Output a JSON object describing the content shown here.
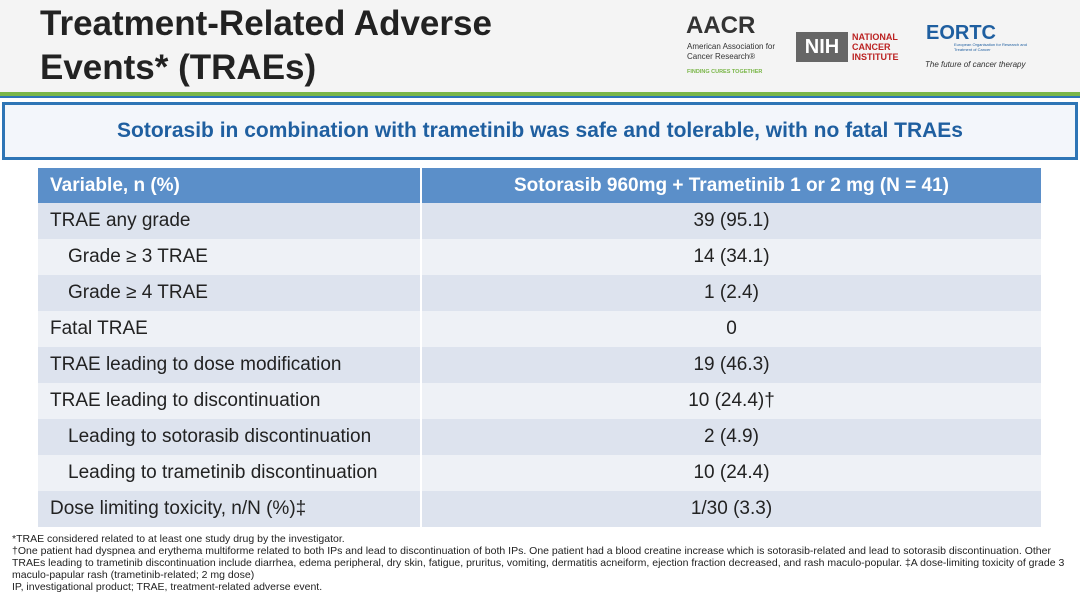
{
  "header": {
    "title": "Treatment-Related Adverse Events* (TRAEs)",
    "logos": {
      "aacr": "AACR",
      "aacr_name": "American Association for Cancer Research®",
      "aacr_tagline": "FINDING CURES TOGETHER",
      "nih": "NIH",
      "nci": "NATIONAL CANCER INSTITUTE",
      "eortc": "EORTC",
      "eortc_name": "European Organisation for Research and Treatment of Cancer",
      "eortc_tagline": "The future of cancer therapy"
    }
  },
  "banner": "Sotorasib in combination with trametinib was safe and tolerable, with no fatal TRAEs",
  "table": {
    "columns": [
      "Variable, n (%)",
      "Sotorasib 960mg + Trametinib 1 or 2 mg (N = 41)"
    ],
    "rows": [
      [
        "TRAE any grade",
        "39 (95.1)"
      ],
      [
        "Grade ≥ 3 TRAE",
        "14 (34.1)"
      ],
      [
        "Grade ≥ 4 TRAE",
        "1 (2.4)"
      ],
      [
        "Fatal TRAE",
        "0"
      ],
      [
        "TRAE leading to dose modification",
        "19 (46.3)"
      ],
      [
        "TRAE leading to discontinuation",
        "10 (24.4)†"
      ],
      [
        "Leading to sotorasib discontinuation",
        "2 (4.9)"
      ],
      [
        "Leading to trametinib discontinuation",
        "10 (24.4)"
      ],
      [
        "Dose limiting toxicity, n/N (%)‡",
        "1/30 (3.3)"
      ]
    ]
  },
  "footnotes": [
    "*TRAE considered related to at least one study drug by the investigator.",
    "†One patient had dyspnea and erythema multiforme related to both IPs and lead to discontinuation of both IPs. One patient had a blood creatine increase which is sotorasib-related and lead to sotorasib discontinuation. Other TRAEs leading to trametinib discontinuation include diarrhea, edema peripheral, dry skin, fatigue, pruritus, vomiting, dermatitis acneiform, ejection fraction decreased, and rash maculo-popular. ‡A dose-limiting toxicity of grade 3 maculo-papular rash (trametinib-related; 2 mg dose)",
    "IP, investigational product; TRAE, treatment-related adverse event."
  ]
}
